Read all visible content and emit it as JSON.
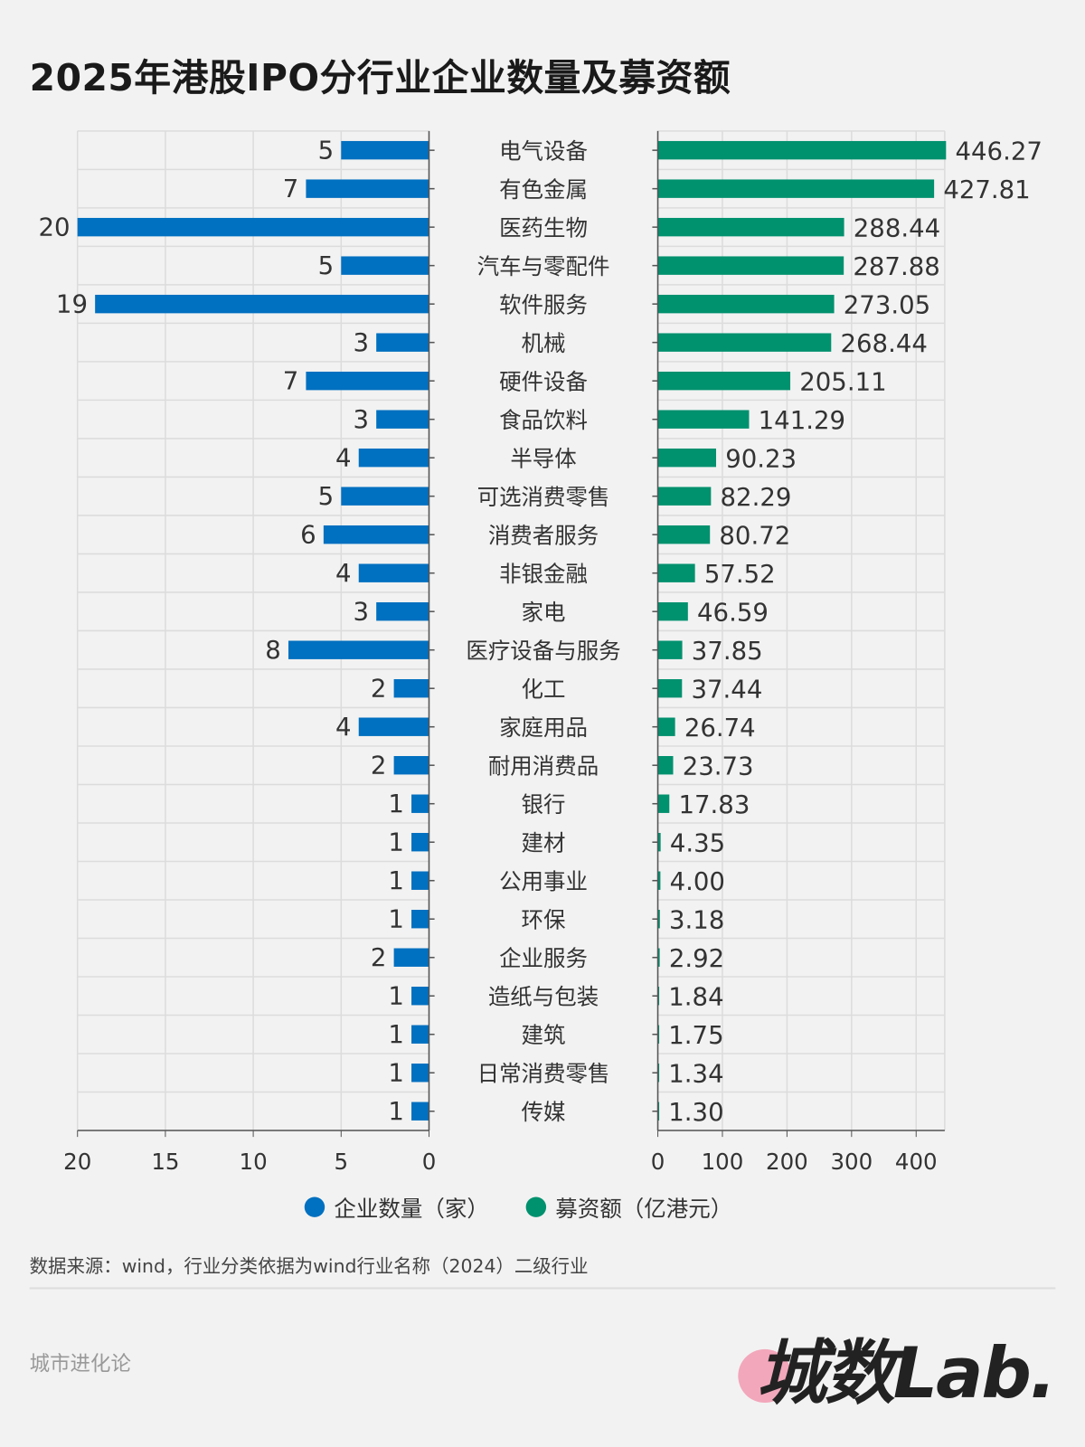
{
  "title": "2025年港股IPO分行业企业数量及募资额",
  "chart_data": {
    "type": "bar",
    "orientation": "horizontal-butterfly",
    "categories": [
      "电气设备",
      "有色金属",
      "医药生物",
      "汽车与零配件",
      "软件服务",
      "机械",
      "硬件设备",
      "食品饮料",
      "半导体",
      "可选消费零售",
      "消费者服务",
      "非银金融",
      "家电",
      "医疗设备与服务",
      "化工",
      "家庭用品",
      "耐用消费品",
      "银行",
      "建材",
      "公用事业",
      "环保",
      "企业服务",
      "造纸与包装",
      "建筑",
      "日常消费零售",
      "传媒"
    ],
    "series": [
      {
        "name": "企业数量（家）",
        "color": "#0070c0",
        "values": [
          5,
          7,
          20,
          5,
          19,
          3,
          7,
          3,
          4,
          5,
          6,
          4,
          3,
          8,
          2,
          4,
          2,
          1,
          1,
          1,
          1,
          2,
          1,
          1,
          1,
          1
        ],
        "labels": [
          "5",
          "7",
          "20",
          "5",
          "19",
          "3",
          "7",
          "3",
          "4",
          "5",
          "6",
          "4",
          "3",
          "8",
          "2",
          "4",
          "2",
          "1",
          "1",
          "1",
          "1",
          "2",
          "1",
          "1",
          "1",
          "1"
        ],
        "xlim": [
          20,
          0
        ],
        "ticks": [
          "20",
          "15",
          "10",
          "5",
          "0"
        ]
      },
      {
        "name": "募资额（亿港元）",
        "color": "#00916e",
        "values": [
          446.27,
          427.81,
          288.44,
          287.88,
          273.05,
          268.44,
          205.11,
          141.29,
          90.23,
          82.29,
          80.72,
          57.52,
          46.59,
          37.85,
          37.44,
          26.74,
          23.73,
          17.83,
          4.35,
          4.0,
          3.18,
          2.92,
          1.84,
          1.75,
          1.34,
          1.3
        ],
        "labels": [
          "446.27",
          "427.81",
          "288.44",
          "287.88",
          "273.05",
          "268.44",
          "205.11",
          "141.29",
          "90.23",
          "82.29",
          "80.72",
          "57.52",
          "46.59",
          "37.85",
          "37.44",
          "26.74",
          "23.73",
          "17.83",
          "4.35",
          "4.00",
          "3.18",
          "2.92",
          "1.84",
          "1.75",
          "1.34",
          "1.30"
        ],
        "xlim": [
          0,
          446.27
        ],
        "ticks": [
          "0",
          "100",
          "200",
          "300",
          "400"
        ]
      }
    ],
    "grid": true,
    "legend": "bottom"
  },
  "source": "数据来源：wind，行业分类依据为wind行业名称（2024）二级行业",
  "brand": "城市进化论",
  "logo_text": "城数Lab."
}
